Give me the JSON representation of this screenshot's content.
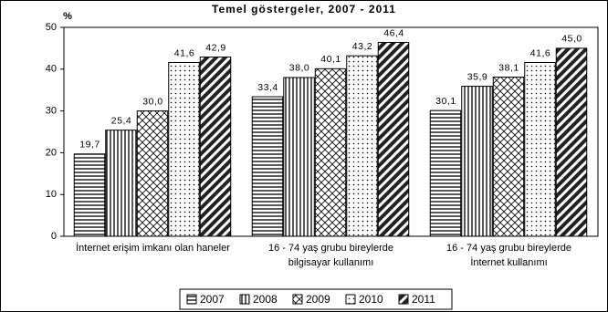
{
  "chart_data": {
    "type": "bar",
    "title": "Temel göstergeler, 2007 - 2011",
    "y_label": "%",
    "categories": [
      [
        "İnternet erişim imkanı olan haneler"
      ],
      [
        "16 - 74 yaş grubu bireylerde",
        "bilgisayar kullanımı"
      ],
      [
        "16 - 74 yaş grubu bireylerde",
        "İnternet kullanımı"
      ]
    ],
    "series": [
      {
        "name": "2007",
        "color": "#000000",
        "pattern": "horizontal",
        "values": [
          19.7,
          33.4,
          30.1
        ],
        "value_labels": [
          "19,7",
          "33,4",
          "30,1"
        ]
      },
      {
        "name": "2008",
        "color": "#000000",
        "pattern": "vertical",
        "values": [
          25.4,
          38.0,
          35.9
        ],
        "value_labels": [
          "25,4",
          "38,0",
          "35,9"
        ]
      },
      {
        "name": "2009",
        "color": "#000000",
        "pattern": "diamond",
        "values": [
          30.0,
          40.1,
          38.1
        ],
        "value_labels": [
          "30,0",
          "40,1",
          "38,1"
        ]
      },
      {
        "name": "2010",
        "color": "#000000",
        "pattern": "dots",
        "values": [
          41.6,
          43.2,
          41.6
        ],
        "value_labels": [
          "41,6",
          "43,2",
          "41,6"
        ]
      },
      {
        "name": "2011",
        "color": "#000000",
        "pattern": "diagonal",
        "values": [
          42.9,
          46.4,
          45.0
        ],
        "value_labels": [
          "42,9",
          "46,4",
          "45,0"
        ]
      }
    ],
    "ylim": [
      0,
      50
    ],
    "yticks": [
      0,
      10,
      20,
      30,
      40,
      50
    ],
    "grid": false,
    "legend": "bottom"
  }
}
